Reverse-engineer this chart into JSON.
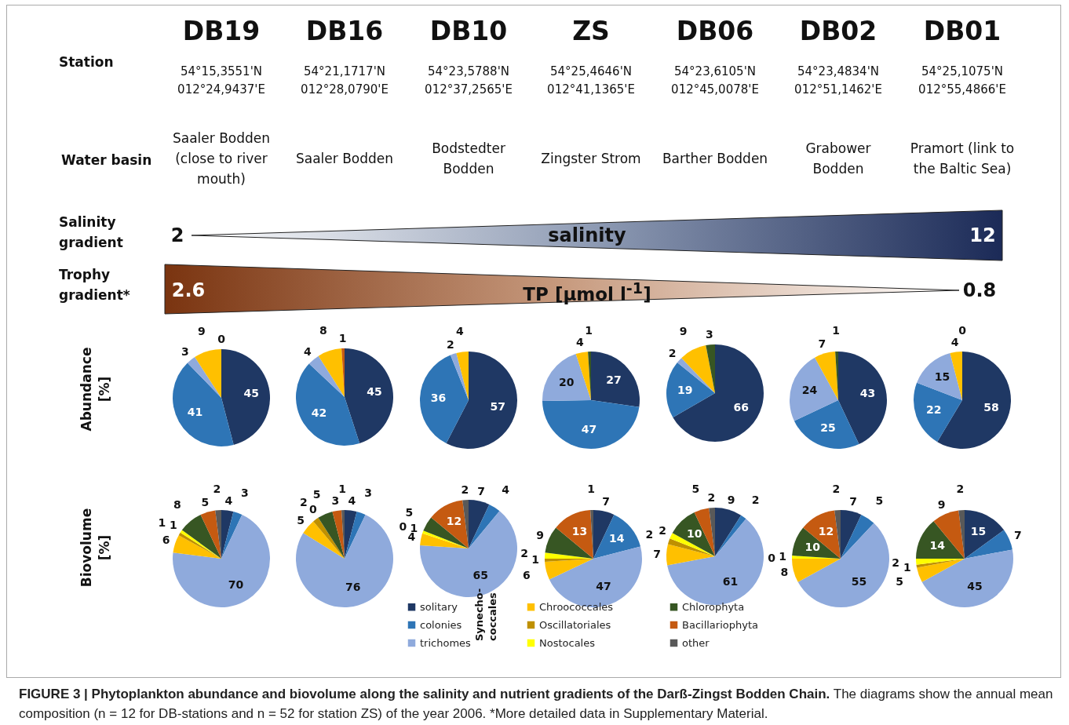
{
  "chart_data": [
    {
      "type": "other",
      "title": "FIGURE 3 | Phytoplankton abundance and biovolume along the salinity and nutrient gradients of the Darß-Zingst Bodden Chain.",
      "subtitle": "The diagrams show the annual mean composition (n = 12 for DB-stations and n = 52 for station ZS) of the year 2006. *More detailed data in Supplementary Material.",
      "categories": [
        "DB19",
        "DB16",
        "DB10",
        "ZS",
        "DB06",
        "DB02",
        "DB01"
      ],
      "annotations": [
        "Station",
        "Water basin",
        "Salinity gradient",
        "Trophy gradient*",
        "54°15,3551'N\n012°24,9437'E",
        "54°21,1717'N\n012°28,0790'E",
        "54°23,5788'N\n012°37,2565'E",
        "54°25,4646'N\n012°41,1365'E",
        "54°23,6105'N\n012°45,0078'E",
        "54°23,4834'N\n012°51,1462'E",
        "54°25,1075'N\n012°55,4866'E",
        "Saaler Bodden (close to river mouth)",
        "Saaler Bodden",
        "Bodstedter Bodden",
        "Zingster Strom",
        "Barther Bodden",
        "Grabower Bodden",
        "Pramort (link to the Baltic Sea)",
        "salinity",
        "2",
        "12",
        "TP [µmol l$^{-1}$]",
        "2.6",
        "0.8"
      ]
    },
    {
      "type": "pie",
      "ylabel": "Abundance\n[%]",
      "categories": [
        null,
        null,
        null,
        null,
        null
      ],
      "values": [
        45,
        41,
        3,
        9,
        0
      ],
      "value_labels": [
        "45",
        "41",
        "3",
        "9",
        "0"
      ],
      "colors": [
        "#1f3864",
        "#2e75b6",
        "#8faadc",
        "#ffc000",
        "#375623"
      ]
    },
    {
      "type": "pie",
      "categories": [
        null,
        null,
        null,
        null,
        null
      ],
      "values": [
        45,
        42,
        4,
        8,
        1
      ],
      "colors": [
        "#1f3864",
        "#2e75b6",
        "#8faadc",
        "#ffc000",
        "#c55a11"
      ],
      "data_labels": true
    },
    {
      "type": "pie",
      "categories": [
        null,
        null,
        null,
        null
      ],
      "values": [
        57,
        36,
        2,
        4
      ],
      "colors": [
        "#1f3864",
        "#2e75b6",
        "#8faadc",
        "#ffc000"
      ],
      "data_labels": true
    },
    {
      "type": "pie",
      "categories": [
        null,
        null,
        null,
        null,
        null
      ],
      "values": [
        27,
        47,
        20,
        4,
        1
      ],
      "colors": [
        "#1f3864",
        "#2e75b6",
        "#8faadc",
        "#ffc000",
        "#375623"
      ],
      "data_labels": true
    },
    {
      "type": "pie",
      "categories": [
        null,
        null,
        null,
        null,
        null
      ],
      "values": [
        66,
        19,
        2,
        9,
        3
      ],
      "colors": [
        "#1f3864",
        "#2e75b6",
        "#8faadc",
        "#ffc000",
        "#375623"
      ],
      "data_labels": true
    },
    {
      "type": "pie",
      "categories": [
        null,
        null,
        null,
        null,
        null
      ],
      "values": [
        43,
        25,
        24,
        7,
        1
      ],
      "colors": [
        "#1f3864",
        "#2e75b6",
        "#8faadc",
        "#ffc000",
        "#375623"
      ],
      "data_labels": true
    },
    {
      "type": "pie",
      "categories": [
        null,
        null,
        null,
        null,
        null
      ],
      "values": [
        58,
        22,
        15,
        4,
        0
      ],
      "value_labels": [
        "58",
        "22",
        "15",
        "4",
        "0"
      ],
      "colors": [
        "#1f3864",
        "#2e75b6",
        "#8faadc",
        "#ffc000",
        "#375623"
      ]
    },
    {
      "type": "pie",
      "ylabel": "Biovolume\n[%]",
      "categories": [
        null,
        null,
        null,
        null,
        null,
        null,
        null,
        null,
        null
      ],
      "values": [
        4,
        3,
        70,
        6,
        1,
        1,
        8,
        5,
        2
      ],
      "colors": [
        "#1f3864",
        "#2e75b6",
        "#8faadc",
        "#ffc000",
        "#bf9000",
        "#ffff00",
        "#375623",
        "#c55a11",
        "#595959"
      ],
      "data_labels": true
    },
    {
      "type": "pie",
      "categories": [
        null,
        null,
        null,
        null,
        null,
        null,
        null,
        null,
        null
      ],
      "values": [
        4,
        3,
        76,
        5,
        2,
        0,
        5,
        3,
        1
      ],
      "value_labels": [
        "4",
        "3",
        "76",
        "5",
        "2",
        "0",
        "5",
        "3",
        "1"
      ],
      "colors": [
        "#1f3864",
        "#2e75b6",
        "#8faadc",
        "#ffc000",
        "#bf9000",
        "#ffff00",
        "#375623",
        "#c55a11",
        "#595959"
      ]
    },
    {
      "type": "pie",
      "legend": "bottom",
      "annotations": [
        "Synecho-\ncoccales"
      ],
      "categories": [
        "solitary",
        "colonies",
        "trichomes",
        "Chroococcales",
        "Oscillatoriales",
        "Nostocales",
        "Chlorophyta",
        "Bacillariophyta",
        "other"
      ],
      "values": [
        7,
        4,
        65,
        4,
        0,
        1,
        5,
        12,
        2
      ],
      "value_labels": [
        "7",
        "4",
        "65",
        "4",
        "0",
        "1",
        "5",
        "12",
        "2"
      ],
      "colors": [
        "#1f3864",
        "#2e75b6",
        "#8faadc",
        "#ffc000",
        "#bf9000",
        "#ffff00",
        "#375623",
        "#c55a11",
        "#595959"
      ]
    },
    {
      "type": "pie",
      "categories": [
        null,
        null,
        null,
        null,
        null,
        null,
        null,
        null,
        null
      ],
      "values": [
        7,
        14,
        47,
        6,
        1,
        2,
        9,
        13,
        1
      ],
      "colors": [
        "#1f3864",
        "#2e75b6",
        "#8faadc",
        "#ffc000",
        "#bf9000",
        "#ffff00",
        "#375623",
        "#c55a11",
        "#595959"
      ],
      "data_labels": true
    },
    {
      "type": "pie",
      "categories": [
        null,
        null,
        null,
        null,
        null,
        null,
        null,
        null,
        null
      ],
      "values": [
        9,
        2,
        61,
        7,
        2,
        2,
        10,
        5,
        2
      ],
      "colors": [
        "#1f3864",
        "#2e75b6",
        "#8faadc",
        "#ffc000",
        "#bf9000",
        "#ffff00",
        "#375623",
        "#c55a11",
        "#595959"
      ],
      "data_labels": true
    },
    {
      "type": "pie",
      "categories": [
        null,
        null,
        null,
        null,
        null,
        null,
        null,
        null,
        null
      ],
      "values": [
        7,
        5,
        55,
        8,
        0,
        1,
        10,
        12,
        2
      ],
      "value_labels": [
        "7",
        "5",
        "55",
        "8",
        "0",
        "1",
        "10",
        "12",
        "2"
      ],
      "colors": [
        "#1f3864",
        "#2e75b6",
        "#8faadc",
        "#ffc000",
        "#bf9000",
        "#ffff00",
        "#375623",
        "#c55a11",
        "#595959"
      ]
    },
    {
      "type": "pie",
      "categories": [
        null,
        null,
        null,
        null,
        null,
        null,
        null,
        null,
        null
      ],
      "values": [
        15,
        7,
        45,
        5,
        1,
        2,
        14,
        9,
        2
      ],
      "colors": [
        "#1f3864",
        "#2e75b6",
        "#8faadc",
        "#ffc000",
        "#bf9000",
        "#ffff00",
        "#375623",
        "#c55a11",
        "#595959"
      ],
      "data_labels": true
    }
  ]
}
